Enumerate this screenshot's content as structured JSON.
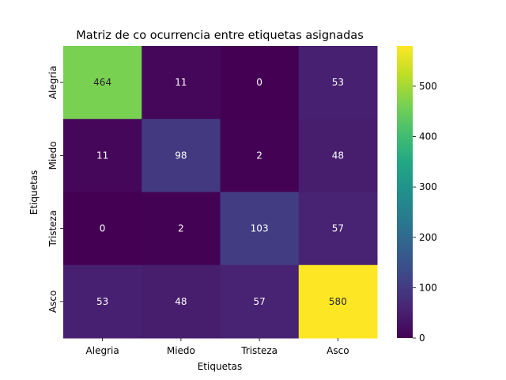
{
  "chart_data": {
    "type": "heatmap",
    "title": "Matriz de co ocurrencia entre etiquetas asignadas",
    "xlabel": "Etiquetas",
    "ylabel": "Etiquetas",
    "x_categories": [
      "Alegria",
      "Miedo",
      "Tristeza",
      "Asco"
    ],
    "y_categories": [
      "Alegria",
      "Miedo",
      "Tristeza",
      "Asco"
    ],
    "values": [
      [
        464,
        11,
        0,
        53
      ],
      [
        11,
        98,
        2,
        48
      ],
      [
        0,
        2,
        103,
        57
      ],
      [
        53,
        48,
        57,
        580
      ]
    ],
    "colormap": "viridis",
    "vmin": 0,
    "vmax": 580,
    "colorbar_ticks": [
      0,
      100,
      200,
      300,
      400,
      500
    ]
  }
}
